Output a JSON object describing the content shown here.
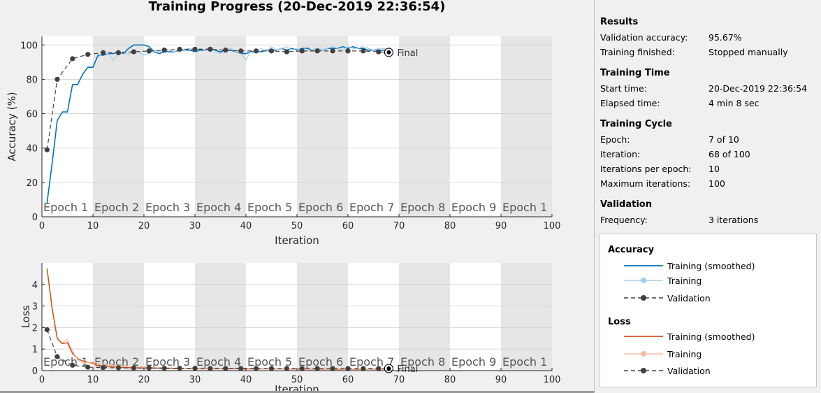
{
  "figure_title": "Training Progress (20-Dec-2019 22:36:54)",
  "epoch_labels": [
    "Epoch 1",
    "Epoch 2",
    "Epoch 3",
    "Epoch 4",
    "Epoch 5",
    "Epoch 6",
    "Epoch 7",
    "Epoch 8",
    "Epoch 9",
    "Epoch 1"
  ],
  "final_label": "Final",
  "colors": {
    "acc_smoothed": "#0072bd",
    "acc_training": "#a6cde9",
    "loss_smoothed": "#d95319",
    "loss_training": "#f2bda3",
    "validation": "#404040",
    "epoch_shade": "#e6e6e6"
  },
  "chart_data": [
    {
      "type": "line",
      "name": "accuracy",
      "xlabel": "Iteration",
      "ylabel": "Accuracy (%)",
      "xlim": [
        0,
        100
      ],
      "ylim": [
        0,
        105
      ],
      "xticks": [
        0,
        10,
        20,
        30,
        40,
        50,
        60,
        70,
        80,
        90,
        100
      ],
      "yticks": [
        0,
        20,
        40,
        60,
        80,
        100
      ],
      "series": [
        {
          "name": "Training (smoothed)",
          "x": [
            1,
            2,
            3,
            4,
            5,
            6,
            7,
            8,
            9,
            10,
            11,
            12,
            13,
            14,
            15,
            16,
            17,
            18,
            19,
            20,
            21,
            22,
            23,
            24,
            25,
            26,
            27,
            28,
            29,
            30,
            31,
            32,
            33,
            34,
            35,
            36,
            37,
            38,
            39,
            40,
            41,
            42,
            43,
            44,
            45,
            46,
            47,
            48,
            49,
            50,
            51,
            52,
            53,
            54,
            55,
            56,
            57,
            58,
            59,
            60,
            61,
            62,
            63,
            64,
            65,
            66,
            67,
            68
          ],
          "y": [
            8,
            31,
            56,
            61,
            61,
            77,
            77,
            83,
            87,
            87,
            94,
            94,
            95,
            95,
            96,
            95,
            98,
            100,
            100,
            100,
            99,
            96,
            95,
            96,
            96,
            96,
            97,
            97,
            97,
            96,
            97,
            97,
            98,
            97,
            96,
            97,
            97,
            96,
            95,
            95,
            96,
            96,
            96,
            97,
            97,
            97,
            98,
            97,
            98,
            97,
            98,
            98,
            97,
            98,
            97,
            98,
            98,
            98,
            99,
            98,
            99,
            98,
            98,
            97,
            97,
            97,
            97,
            97
          ]
        },
        {
          "name": "Training",
          "x": [
            11,
            12,
            13,
            14,
            15,
            16,
            17,
            18,
            19,
            20,
            21,
            22,
            23,
            24,
            25,
            26,
            27,
            28,
            29,
            30,
            31,
            32,
            33,
            34,
            35,
            36,
            37,
            38,
            39,
            40,
            41,
            42,
            43,
            44,
            45,
            46,
            47,
            48,
            49,
            50,
            51,
            52,
            53,
            54,
            55,
            56,
            57,
            58,
            59,
            60,
            61,
            62,
            63,
            64,
            65,
            66,
            67,
            68
          ],
          "y": [
            93,
            95,
            95,
            91,
            95,
            96,
            94,
            97,
            96,
            94,
            95,
            97,
            96,
            97,
            97,
            96,
            98,
            97,
            98,
            96,
            98,
            97,
            99,
            96,
            95,
            97,
            98,
            96,
            95,
            91,
            97,
            96,
            98,
            96,
            99,
            97,
            98,
            99,
            97,
            98,
            96,
            99,
            97,
            98,
            97,
            98,
            99,
            98,
            97,
            99,
            98,
            98,
            99,
            98,
            97,
            98,
            98,
            97
          ]
        },
        {
          "name": "Validation",
          "x": [
            1,
            3,
            6,
            9,
            12,
            15,
            18,
            21,
            24,
            27,
            30,
            33,
            36,
            39,
            42,
            45,
            48,
            51,
            54,
            57,
            60,
            63,
            66,
            68
          ],
          "y": [
            39,
            80,
            92,
            94.5,
            95.5,
            95.5,
            96,
            96.5,
            97,
            97.5,
            97.5,
            97.5,
            97,
            96.5,
            96.5,
            96.5,
            96,
            96.5,
            96.5,
            96.5,
            96.5,
            96.5,
            96,
            95.67
          ]
        }
      ]
    },
    {
      "type": "line",
      "name": "loss",
      "xlabel": "Iteration",
      "ylabel": "Loss",
      "xlim": [
        0,
        100
      ],
      "ylim": [
        0,
        5
      ],
      "xticks": [
        0,
        10,
        20,
        30,
        40,
        50,
        60,
        70,
        80,
        90,
        100
      ],
      "yticks": [
        0,
        1,
        2,
        3,
        4
      ],
      "series": [
        {
          "name": "Training (smoothed)",
          "x": [
            1,
            2,
            3,
            4,
            5,
            6,
            7,
            8,
            9,
            10,
            11,
            12,
            14,
            16,
            18,
            20,
            22,
            24,
            26,
            28,
            30,
            32,
            34,
            36,
            38,
            40,
            42,
            44,
            46,
            48,
            50,
            52,
            54,
            56,
            58,
            60,
            62,
            64,
            66,
            68
          ],
          "y": [
            4.75,
            2.9,
            1.5,
            1.25,
            1.3,
            0.8,
            0.55,
            0.45,
            0.38,
            0.35,
            0.22,
            0.2,
            0.18,
            0.15,
            0.13,
            0.12,
            0.12,
            0.11,
            0.1,
            0.1,
            0.1,
            0.1,
            0.09,
            0.09,
            0.09,
            0.08,
            0.08,
            0.08,
            0.08,
            0.08,
            0.07,
            0.07,
            0.07,
            0.07,
            0.06,
            0.06,
            0.06,
            0.06,
            0.06,
            0.06
          ]
        },
        {
          "name": "Training",
          "x": [
            4,
            5,
            6,
            7,
            8,
            10,
            12,
            14,
            16,
            18,
            20,
            22,
            24,
            26,
            28,
            30,
            32,
            34,
            36,
            38,
            40,
            42,
            44,
            46,
            48,
            50,
            52,
            54,
            56,
            58,
            60,
            62,
            64,
            66,
            68
          ],
          "y": [
            1.3,
            1.45,
            0.9,
            0.5,
            0.35,
            0.4,
            0.3,
            0.25,
            0.22,
            0.2,
            0.18,
            0.15,
            0.14,
            0.12,
            0.1,
            0.12,
            0.1,
            0.1,
            0.09,
            0.12,
            0.1,
            0.09,
            0.08,
            0.09,
            0.08,
            0.08,
            0.07,
            0.08,
            0.07,
            0.07,
            0.06,
            0.07,
            0.06,
            0.06,
            0.06
          ]
        },
        {
          "name": "Validation",
          "x": [
            1,
            3,
            6,
            9,
            12,
            15,
            18,
            21,
            24,
            27,
            30,
            33,
            36,
            39,
            42,
            45,
            48,
            51,
            54,
            57,
            60,
            63,
            66,
            68
          ],
          "y": [
            1.9,
            0.65,
            0.25,
            0.16,
            0.14,
            0.13,
            0.12,
            0.12,
            0.11,
            0.11,
            0.11,
            0.1,
            0.1,
            0.1,
            0.1,
            0.1,
            0.1,
            0.1,
            0.1,
            0.1,
            0.1,
            0.1,
            0.1,
            0.1
          ]
        }
      ]
    }
  ],
  "panel": {
    "results": {
      "title": "Results",
      "rows": [
        [
          "Validation accuracy:",
          "95.67%"
        ],
        [
          "Training finished:",
          "Stopped manually"
        ]
      ]
    },
    "time": {
      "title": "Training Time",
      "rows": [
        [
          "Start time:",
          "20-Dec-2019 22:36:54"
        ],
        [
          "Elapsed time:",
          "4 min 8 sec"
        ]
      ]
    },
    "cycle": {
      "title": "Training Cycle",
      "rows": [
        [
          "Epoch:",
          "7 of 10"
        ],
        [
          "Iteration:",
          "68 of 100"
        ],
        [
          "Iterations per epoch:",
          "10"
        ],
        [
          "Maximum iterations:",
          "100"
        ]
      ]
    },
    "validation": {
      "title": "Validation",
      "rows": [
        [
          "Frequency:",
          "3 iterations"
        ]
      ]
    }
  },
  "legend": {
    "accuracy_title": "Accuracy",
    "accuracy_items": [
      "Training (smoothed)",
      "Training",
      "Validation"
    ],
    "loss_title": "Loss",
    "loss_items": [
      "Training (smoothed)",
      "Training",
      "Validation"
    ]
  }
}
